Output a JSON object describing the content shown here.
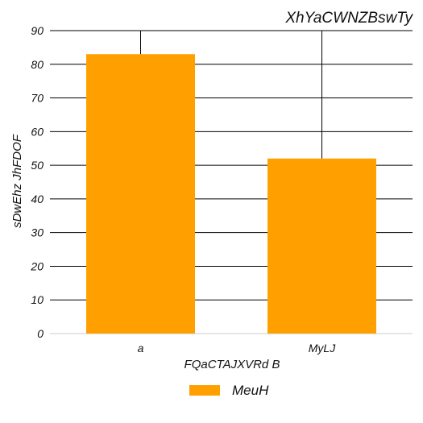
{
  "chart_data": {
    "type": "bar",
    "title": "XhYaCWNZBswTy",
    "xlabel": "FQaCTAJXVRd  B",
    "ylabel": "sDwEhz JhFDOF",
    "categories": [
      "a",
      "MyLJ"
    ],
    "series": [
      {
        "name": "MeuH",
        "values": [
          83,
          52
        ],
        "color": "#ff9f00"
      }
    ],
    "ylim": [
      0,
      90
    ],
    "yticks": [
      0,
      10,
      20,
      30,
      40,
      50,
      60,
      70,
      80,
      90
    ],
    "grid": true,
    "legend_position": "bottom"
  }
}
